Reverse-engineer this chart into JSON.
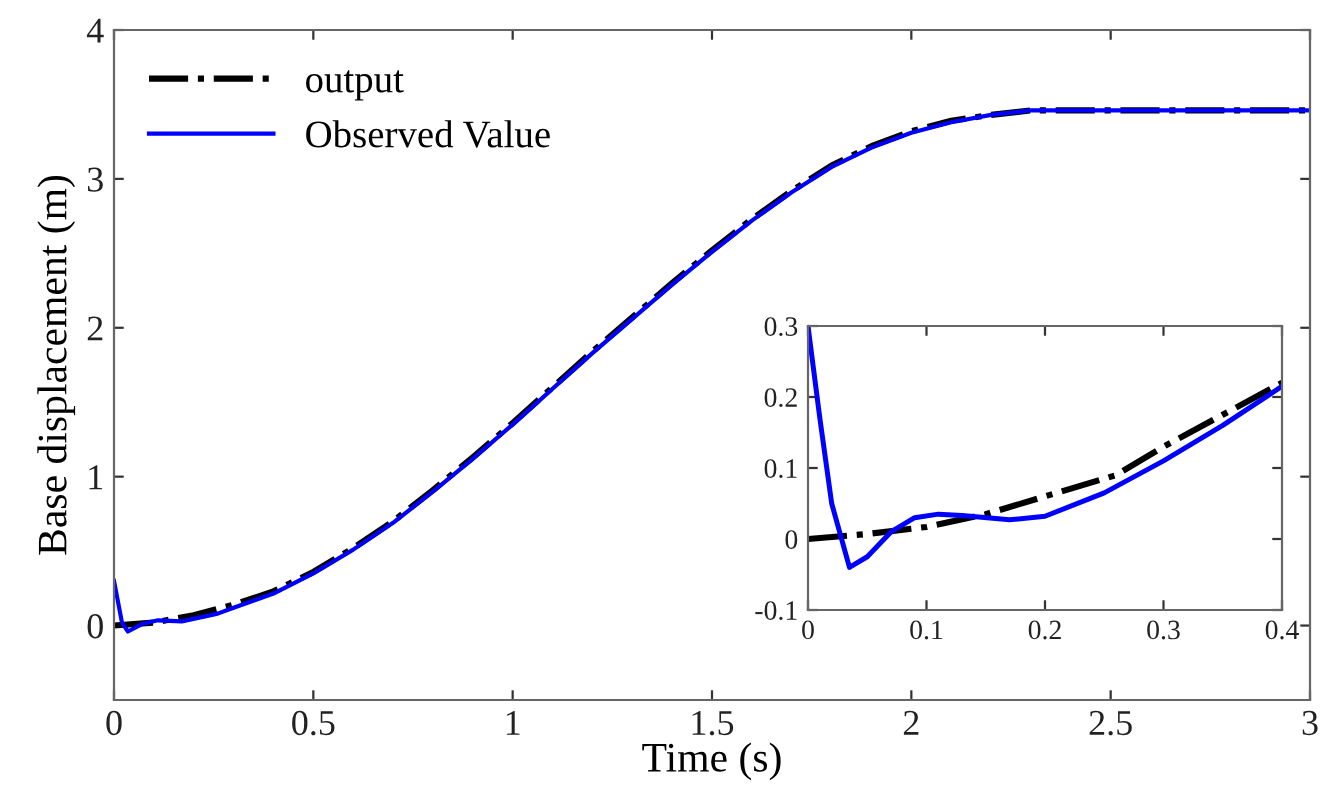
{
  "chart_data": [
    {
      "type": "line",
      "xlabel": "Time (s)",
      "ylabel": "Base displacement (m)",
      "xlim": [
        0,
        3
      ],
      "ylim": [
        -0.5,
        4
      ],
      "xticks": [
        0,
        0.5,
        1,
        1.5,
        2,
        2.5,
        3
      ],
      "yticks": [
        0,
        1,
        2,
        3,
        4
      ],
      "grid": false,
      "legend": "top left",
      "series": [
        {
          "name": "output",
          "color": "#000000",
          "line_style": "dashdot",
          "x": [
            0,
            0.1,
            0.2,
            0.3,
            0.4,
            0.5,
            0.6,
            0.7,
            0.8,
            0.9,
            1.0,
            1.1,
            1.2,
            1.3,
            1.4,
            1.5,
            1.6,
            1.7,
            1.8,
            1.9,
            2.0,
            2.1,
            2.2,
            2.3,
            2.5,
            3.0
          ],
          "values": [
            0,
            0.02,
            0.07,
            0.14,
            0.23,
            0.36,
            0.52,
            0.7,
            0.91,
            1.13,
            1.36,
            1.6,
            1.84,
            2.07,
            2.3,
            2.52,
            2.73,
            2.92,
            3.09,
            3.22,
            3.32,
            3.39,
            3.43,
            3.46,
            3.46,
            3.46
          ]
        },
        {
          "name": "Observed Value",
          "color": "#0000ff",
          "line_style": "solid",
          "x": [
            0,
            0.02,
            0.035,
            0.07,
            0.11,
            0.17,
            0.26,
            0.3,
            0.4,
            0.5,
            0.6,
            0.7,
            0.8,
            0.9,
            1.0,
            1.1,
            1.2,
            1.3,
            1.4,
            1.5,
            1.6,
            1.7,
            1.8,
            1.9,
            2.0,
            2.1,
            2.2,
            2.3,
            2.5,
            3.0
          ],
          "values": [
            0.3,
            0.02,
            -0.04,
            0.01,
            0.035,
            0.028,
            0.08,
            0.12,
            0.215,
            0.35,
            0.51,
            0.69,
            0.9,
            1.12,
            1.35,
            1.59,
            1.83,
            2.06,
            2.29,
            2.51,
            2.72,
            2.91,
            3.08,
            3.21,
            3.31,
            3.38,
            3.43,
            3.46,
            3.46,
            3.46
          ]
        }
      ]
    },
    {
      "type": "line",
      "xlim": [
        0,
        0.4
      ],
      "ylim": [
        -0.1,
        0.3
      ],
      "xticks": [
        0,
        0.1,
        0.2,
        0.3,
        0.4
      ],
      "yticks": [
        -0.1,
        0,
        0.1,
        0.2,
        0.3
      ],
      "grid": false,
      "series": [
        {
          "color": "#000000",
          "line_style": "dashdot",
          "x": [
            0,
            0.05,
            0.1,
            0.15,
            0.2,
            0.26,
            0.3,
            0.35,
            0.4
          ],
          "values": [
            0,
            0.007,
            0.017,
            0.035,
            0.06,
            0.09,
            0.13,
            0.175,
            0.22
          ]
        },
        {
          "color": "#0000ff",
          "line_style": "solid",
          "x": [
            0,
            0.01,
            0.02,
            0.035,
            0.05,
            0.07,
            0.09,
            0.11,
            0.13,
            0.17,
            0.2,
            0.25,
            0.3,
            0.35,
            0.4
          ],
          "values": [
            0.3,
            0.17,
            0.05,
            -0.04,
            -0.025,
            0.01,
            0.03,
            0.035,
            0.033,
            0.027,
            0.032,
            0.065,
            0.11,
            0.16,
            0.215
          ]
        }
      ]
    }
  ]
}
